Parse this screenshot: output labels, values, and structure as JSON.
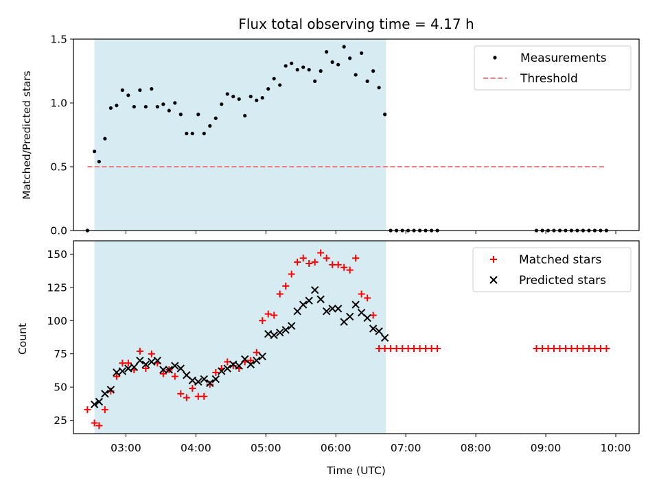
{
  "chart_data": [
    {
      "type": "scatter",
      "title": "Flux total observing time = 4.17 h",
      "xlabel": "",
      "ylabel": "Matched/Predicted stars",
      "ylim": [
        0,
        1.5
      ],
      "yticks": [
        "0.0",
        "0.5",
        "1.0",
        "1.5"
      ],
      "xlim": [
        "02:15",
        "10:20"
      ],
      "shaded_interval": [
        "02:33",
        "06:43"
      ],
      "shade_color": "#add8e6",
      "threshold": 0.5,
      "legend": {
        "placement": "top-right",
        "entries": [
          "Measurements",
          "Threshold"
        ]
      },
      "series": [
        {
          "name": "Measurements",
          "color": "#000000",
          "x": [
            "02:27",
            "02:33",
            "02:37",
            "02:42",
            "02:47",
            "02:52",
            "02:57",
            "03:02",
            "03:07",
            "03:12",
            "03:17",
            "03:22",
            "03:27",
            "03:32",
            "03:37",
            "03:42",
            "03:47",
            "03:52",
            "03:57",
            "04:02",
            "04:07",
            "04:12",
            "04:17",
            "04:22",
            "04:27",
            "04:32",
            "04:37",
            "04:42",
            "04:47",
            "04:52",
            "04:57",
            "05:02",
            "05:07",
            "05:12",
            "05:17",
            "05:22",
            "05:27",
            "05:32",
            "05:37",
            "05:42",
            "05:47",
            "05:52",
            "05:57",
            "06:02",
            "06:07",
            "06:12",
            "06:17",
            "06:22",
            "06:27",
            "06:32",
            "06:37",
            "06:42",
            "06:47",
            "06:52",
            "06:57",
            "07:02",
            "07:07",
            "07:12",
            "07:17",
            "07:22",
            "07:27",
            "08:52",
            "08:57",
            "09:02",
            "09:07",
            "09:12",
            "09:17",
            "09:22",
            "09:27",
            "09:32",
            "09:37",
            "09:42",
            "09:47",
            "09:52"
          ],
          "y": [
            0.0,
            0.62,
            0.54,
            0.72,
            0.96,
            0.98,
            1.1,
            1.06,
            0.97,
            1.1,
            0.97,
            1.11,
            0.97,
            0.99,
            0.94,
            1.0,
            0.91,
            0.76,
            0.76,
            0.91,
            0.76,
            0.82,
            0.88,
            0.99,
            1.07,
            1.05,
            1.03,
            0.9,
            1.05,
            1.02,
            1.04,
            1.11,
            1.19,
            1.14,
            1.29,
            1.31,
            1.26,
            1.28,
            1.26,
            1.17,
            1.25,
            1.4,
            1.32,
            1.3,
            1.44,
            1.35,
            1.22,
            1.39,
            1.17,
            1.25,
            1.12,
            0.91,
            0.0,
            0.0,
            0.0,
            0.0,
            0.0,
            0.0,
            0.0,
            0.0,
            0.0,
            0.0,
            0.0,
            0.0,
            0.0,
            0.0,
            0.0,
            0.0,
            0.0,
            0.0,
            0.0,
            0.0,
            0.0,
            0.0
          ]
        },
        {
          "name": "Threshold",
          "color": "#f08080",
          "x": [
            "02:27",
            "09:52"
          ],
          "y": [
            0.5,
            0.5
          ]
        }
      ]
    },
    {
      "type": "scatter",
      "title": "",
      "xlabel": "Time (UTC)",
      "ylabel": "Count",
      "ylim": [
        15,
        160
      ],
      "yticks": [
        "25",
        "50",
        "75",
        "100",
        "125",
        "150"
      ],
      "xlim": [
        "02:15",
        "10:20"
      ],
      "xticks": [
        "03:00",
        "04:00",
        "05:00",
        "06:00",
        "07:00",
        "08:00",
        "09:00",
        "10:00"
      ],
      "shaded_interval": [
        "02:33",
        "06:43"
      ],
      "legend": {
        "placement": "top-right",
        "entries": [
          "Matched stars",
          "Predicted stars"
        ]
      },
      "series": [
        {
          "name": "Matched stars",
          "color": "#ff0000",
          "x": [
            "02:27",
            "02:33",
            "02:37",
            "02:42",
            "02:47",
            "02:52",
            "02:57",
            "03:02",
            "03:07",
            "03:12",
            "03:17",
            "03:22",
            "03:27",
            "03:32",
            "03:37",
            "03:42",
            "03:47",
            "03:52",
            "03:57",
            "04:02",
            "04:07",
            "04:12",
            "04:17",
            "04:22",
            "04:27",
            "04:32",
            "04:37",
            "04:42",
            "04:47",
            "04:52",
            "04:57",
            "05:02",
            "05:07",
            "05:12",
            "05:17",
            "05:22",
            "05:27",
            "05:32",
            "05:37",
            "05:42",
            "05:47",
            "05:52",
            "05:57",
            "06:02",
            "06:07",
            "06:12",
            "06:17",
            "06:22",
            "06:27",
            "06:32",
            "06:37",
            "06:42",
            "06:47",
            "06:52",
            "06:57",
            "07:02",
            "07:07",
            "07:12",
            "07:17",
            "07:22",
            "07:27",
            "08:52",
            "08:57",
            "09:02",
            "09:07",
            "09:12",
            "09:17",
            "09:22",
            "09:27",
            "09:32",
            "09:37",
            "09:42",
            "09:47",
            "09:52"
          ],
          "y": [
            33,
            23,
            21,
            33,
            47,
            58,
            68,
            68,
            63,
            77,
            64,
            75,
            68,
            60,
            63,
            58,
            45,
            42,
            49,
            43,
            43,
            52,
            61,
            64,
            69,
            66,
            64,
            69,
            70,
            76,
            100,
            105,
            104,
            120,
            126,
            135,
            144,
            147,
            143,
            144,
            151,
            147,
            142,
            142,
            140,
            138,
            147,
            120,
            117,
            104,
            79,
            79,
            79,
            79,
            79,
            79,
            79,
            79,
            79,
            79,
            79,
            79,
            79,
            79,
            79,
            79,
            79,
            79,
            79,
            79,
            79,
            79,
            79,
            79
          ]
        },
        {
          "name": "Predicted stars",
          "color": "#000000",
          "x": [
            "02:33",
            "02:37",
            "02:42",
            "02:47",
            "02:52",
            "02:57",
            "03:02",
            "03:07",
            "03:12",
            "03:17",
            "03:22",
            "03:27",
            "03:32",
            "03:37",
            "03:42",
            "03:47",
            "03:52",
            "03:57",
            "04:02",
            "04:07",
            "04:12",
            "04:17",
            "04:22",
            "04:27",
            "04:32",
            "04:37",
            "04:42",
            "04:47",
            "04:52",
            "04:57",
            "05:02",
            "05:07",
            "05:12",
            "05:17",
            "05:22",
            "05:27",
            "05:32",
            "05:37",
            "05:42",
            "05:47",
            "05:52",
            "05:57",
            "06:02",
            "06:07",
            "06:12",
            "06:17",
            "06:22",
            "06:27",
            "06:32",
            "06:37",
            "06:42"
          ],
          "y": [
            37,
            39,
            45,
            48,
            61,
            62,
            64,
            65,
            70,
            67,
            69,
            70,
            63,
            63,
            66,
            64,
            59,
            55,
            54,
            56,
            53,
            56,
            62,
            64,
            67,
            66,
            71,
            67,
            70,
            73,
            90,
            89,
            91,
            93,
            96,
            107,
            112,
            115,
            123,
            116,
            107,
            109,
            109,
            99,
            103,
            112,
            106,
            102,
            94,
            92,
            87
          ]
        }
      ]
    }
  ]
}
